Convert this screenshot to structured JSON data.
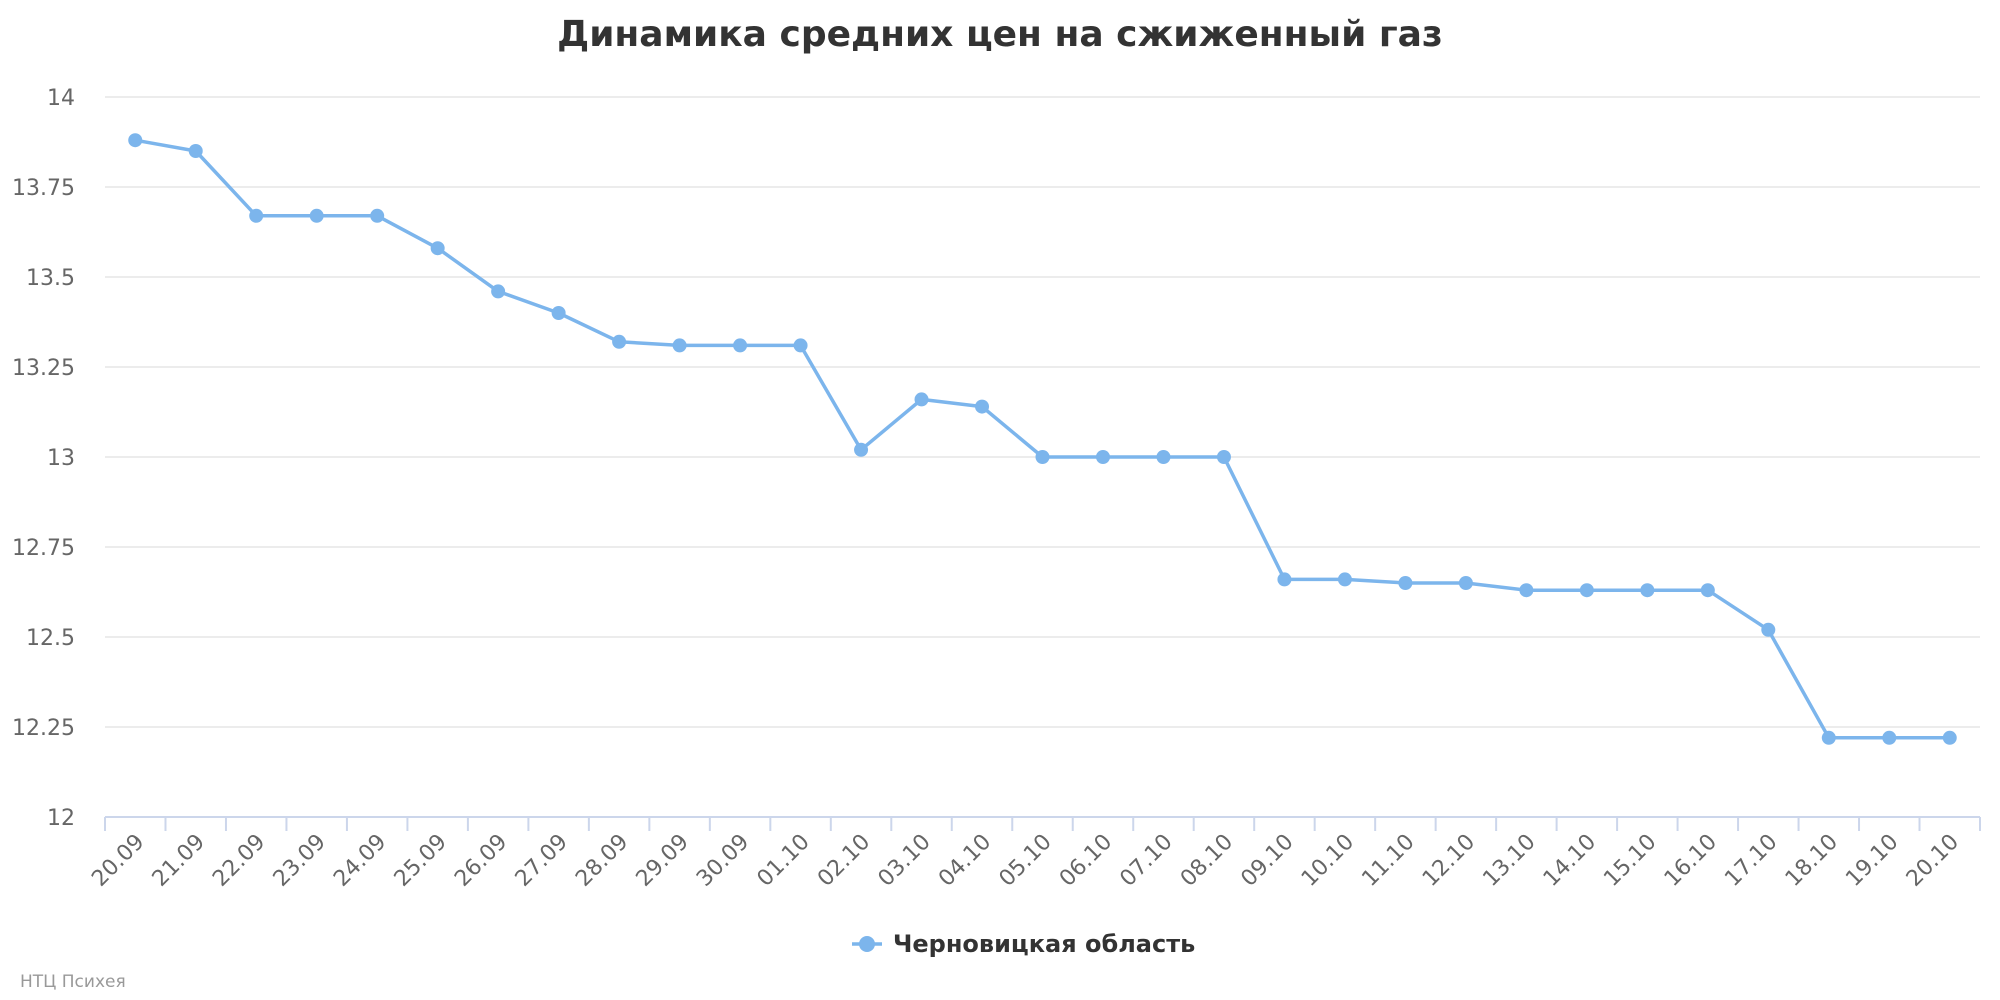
{
  "chart_data": {
    "type": "line",
    "title": "Динамика средних цен на сжиженный газ",
    "xlabel": "",
    "ylabel": "",
    "ylim": [
      12,
      14
    ],
    "yticks": [
      "12",
      "12.25",
      "12.5",
      "12.75",
      "13",
      "13.25",
      "13.5",
      "13.75",
      "14"
    ],
    "grid": true,
    "legend_position": "bottom-center",
    "categories": [
      "20.09",
      "21.09",
      "22.09",
      "23.09",
      "24.09",
      "25.09",
      "26.09",
      "27.09",
      "28.09",
      "29.09",
      "30.09",
      "01.10",
      "02.10",
      "03.10",
      "04.10",
      "05.10",
      "06.10",
      "07.10",
      "08.10",
      "09.10",
      "10.10",
      "11.10",
      "12.10",
      "13.10",
      "14.10",
      "15.10",
      "16.10",
      "17.10",
      "18.10",
      "19.10",
      "20.10"
    ],
    "series": [
      {
        "name": "Черновицкая область",
        "color": "#7cb5ec",
        "values": [
          13.88,
          13.85,
          13.67,
          13.67,
          13.67,
          13.58,
          13.46,
          13.4,
          13.32,
          13.31,
          13.31,
          13.31,
          13.02,
          13.16,
          13.14,
          13.0,
          13.0,
          13.0,
          13.0,
          12.66,
          12.66,
          12.65,
          12.65,
          12.63,
          12.63,
          12.63,
          12.63,
          12.52,
          12.22,
          12.22,
          12.22
        ]
      }
    ]
  },
  "credit": "НТЦ Психея"
}
